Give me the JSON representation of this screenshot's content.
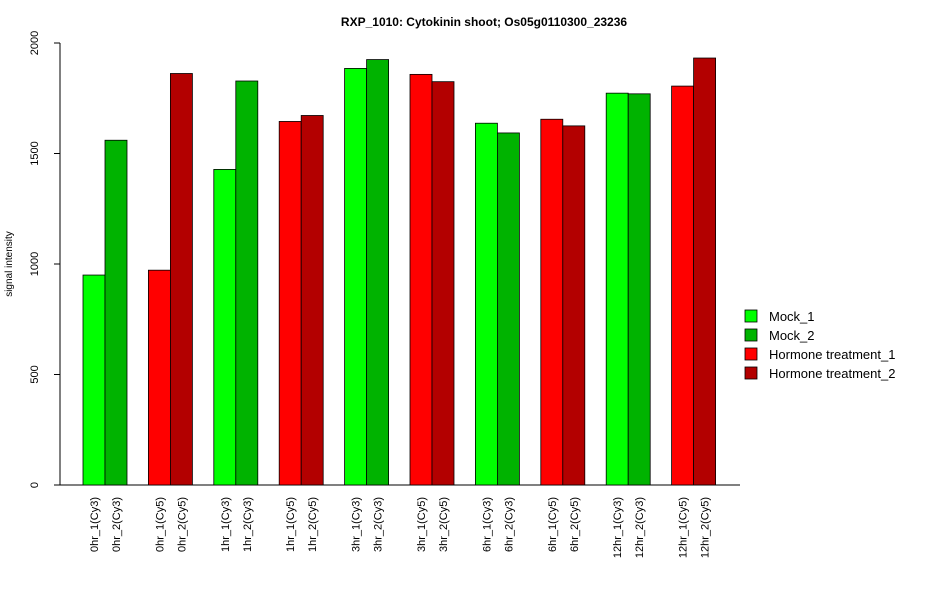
{
  "chart_data": {
    "type": "bar",
    "title": "RXP_1010: Cytokinin shoot; Os05g0110300_23236",
    "xlabel": "",
    "ylabel": "signal intensity",
    "ylim": [
      0,
      2000
    ],
    "yticks": [
      0,
      500,
      1000,
      1500,
      2000
    ],
    "grid": false,
    "legend_position": "right",
    "legend": [
      {
        "name": "Mock_1",
        "color": "#00ff00"
      },
      {
        "name": "Mock_2",
        "color": "#00b300"
      },
      {
        "name": "Hormone treatment_1",
        "color": "#ff0000"
      },
      {
        "name": "Hormone treatment_2",
        "color": "#b30000"
      }
    ],
    "groups": [
      {
        "bars": [
          {
            "label": "0hr_1(Cy3)",
            "value": 950,
            "color": "#00ff00"
          },
          {
            "label": "0hr_2(Cy3)",
            "value": 1560,
            "color": "#00b300"
          }
        ]
      },
      {
        "bars": [
          {
            "label": "0hr_1(Cy5)",
            "value": 972,
            "color": "#ff0000"
          },
          {
            "label": "0hr_2(Cy5)",
            "value": 1862,
            "color": "#b30000"
          }
        ]
      },
      {
        "bars": [
          {
            "label": "1hr_1(Cy3)",
            "value": 1428,
            "color": "#00ff00"
          },
          {
            "label": "1hr_2(Cy3)",
            "value": 1828,
            "color": "#00b300"
          }
        ]
      },
      {
        "bars": [
          {
            "label": "1hr_1(Cy5)",
            "value": 1645,
            "color": "#ff0000"
          },
          {
            "label": "1hr_2(Cy5)",
            "value": 1672,
            "color": "#b30000"
          }
        ]
      },
      {
        "bars": [
          {
            "label": "3hr_1(Cy3)",
            "value": 1885,
            "color": "#00ff00"
          },
          {
            "label": "3hr_2(Cy3)",
            "value": 1925,
            "color": "#00b300"
          }
        ]
      },
      {
        "bars": [
          {
            "label": "3hr_1(Cy5)",
            "value": 1858,
            "color": "#ff0000"
          },
          {
            "label": "3hr_2(Cy5)",
            "value": 1825,
            "color": "#b30000"
          }
        ]
      },
      {
        "bars": [
          {
            "label": "6hr_1(Cy3)",
            "value": 1637,
            "color": "#00ff00"
          },
          {
            "label": "6hr_2(Cy3)",
            "value": 1593,
            "color": "#00b300"
          }
        ]
      },
      {
        "bars": [
          {
            "label": "6hr_1(Cy5)",
            "value": 1655,
            "color": "#ff0000"
          },
          {
            "label": "6hr_2(Cy5)",
            "value": 1625,
            "color": "#b30000"
          }
        ]
      },
      {
        "bars": [
          {
            "label": "12hr_1(Cy3)",
            "value": 1773,
            "color": "#00ff00"
          },
          {
            "label": "12hr_2(Cy3)",
            "value": 1770,
            "color": "#00b300"
          }
        ]
      },
      {
        "bars": [
          {
            "label": "12hr_1(Cy5)",
            "value": 1805,
            "color": "#ff0000"
          },
          {
            "label": "12hr_2(Cy5)",
            "value": 1932,
            "color": "#b30000"
          }
        ]
      }
    ]
  }
}
